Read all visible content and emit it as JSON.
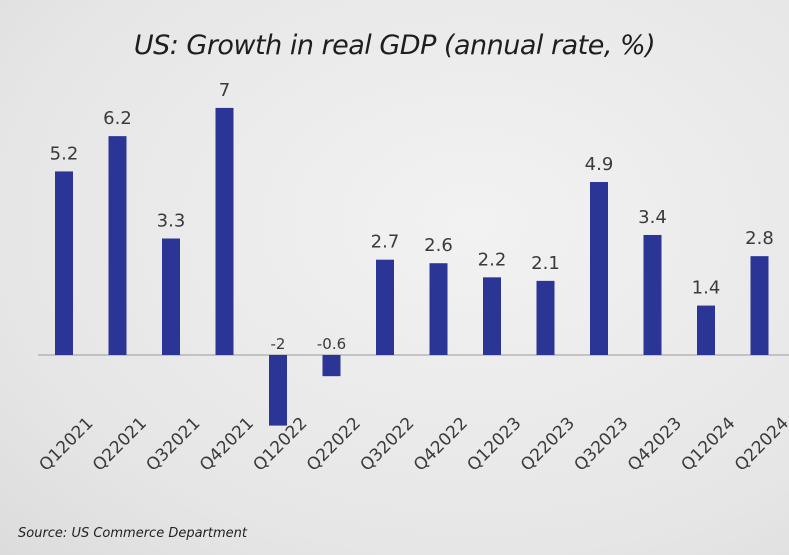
{
  "chart_data": {
    "type": "bar",
    "title": "US: Growth in real GDP (annual rate, %)",
    "categories": [
      "Q12021",
      "Q22021",
      "Q32021",
      "Q42021",
      "Q12022",
      "Q22022",
      "Q32022",
      "Q42022",
      "Q12023",
      "Q22023",
      "Q32023",
      "Q42023",
      "Q12024",
      "Q22024"
    ],
    "values": [
      5.2,
      6.2,
      3.3,
      7,
      -2,
      -0.6,
      2.7,
      2.6,
      2.2,
      2.1,
      4.9,
      3.4,
      1.4,
      2.8
    ],
    "labels": [
      "5.2",
      "6.2",
      "3.3",
      "7",
      "-2",
      "-0.6",
      "2.7",
      "2.6",
      "2.2",
      "2.1",
      "4.9",
      "3.4",
      "1.4",
      "2.8"
    ],
    "xlabel": "",
    "ylabel": "",
    "grid": false,
    "bar_color": "#2a3596",
    "source": "Source: US Commerce Department"
  }
}
